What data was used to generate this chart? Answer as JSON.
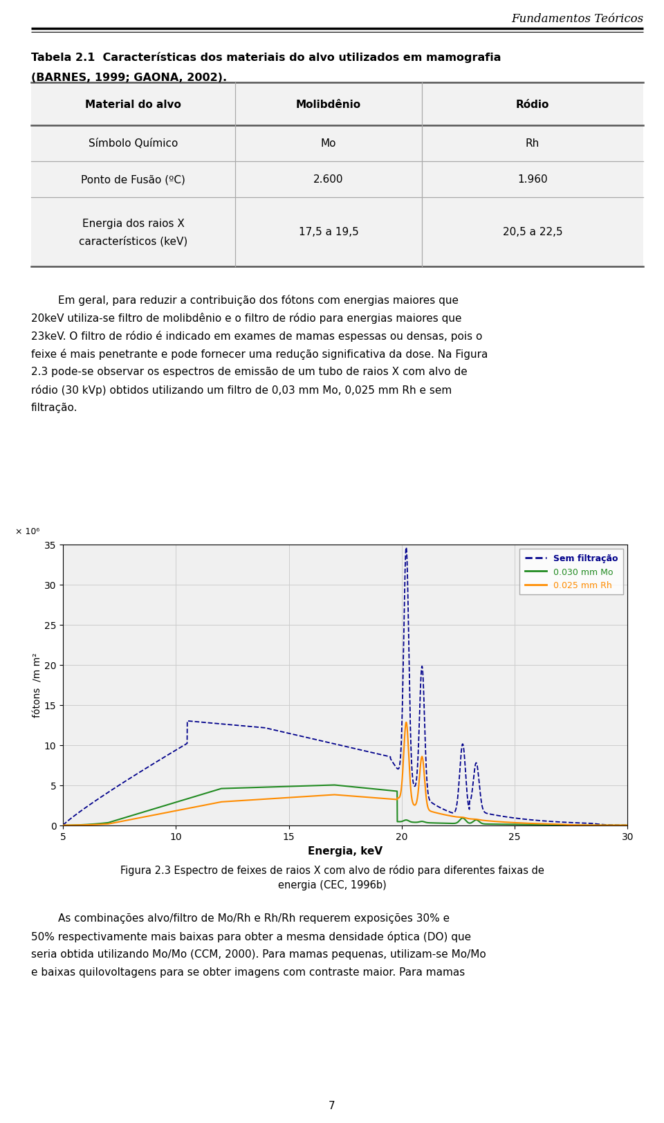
{
  "page_width": 9.6,
  "page_height": 16.24,
  "background_color": "#ffffff",
  "header_text": "Fundamentos Teóricos",
  "table_headers": [
    "Material do alvo",
    "Molibdênio",
    "Ródio"
  ],
  "table_rows": [
    [
      "Símbolo Químico",
      "Mo",
      "Rh"
    ],
    [
      "Ponto de Fusão (ºC)",
      "2.600",
      "1.960"
    ],
    [
      "Energia dos raios X\ncaracterísticos (keV)",
      "17,5 a 19,5",
      "20,5 a 22,5"
    ]
  ],
  "page_number": "7",
  "chart": {
    "xlim": [
      5,
      30
    ],
    "ylim": [
      0,
      35
    ],
    "xticks": [
      5,
      10,
      15,
      20,
      25,
      30
    ],
    "yticks": [
      0,
      5,
      10,
      15,
      20,
      25,
      30,
      35
    ],
    "xlabel": "Energia, keV",
    "legend_entries": [
      "Sem filtração",
      "0.030 mm Mo",
      "0.025 mm Rh"
    ],
    "legend_colors": [
      "#00008B",
      "#228B22",
      "#FF8C00"
    ],
    "grid_color": "#cccccc",
    "chart_bg": "#f0f0f0"
  }
}
